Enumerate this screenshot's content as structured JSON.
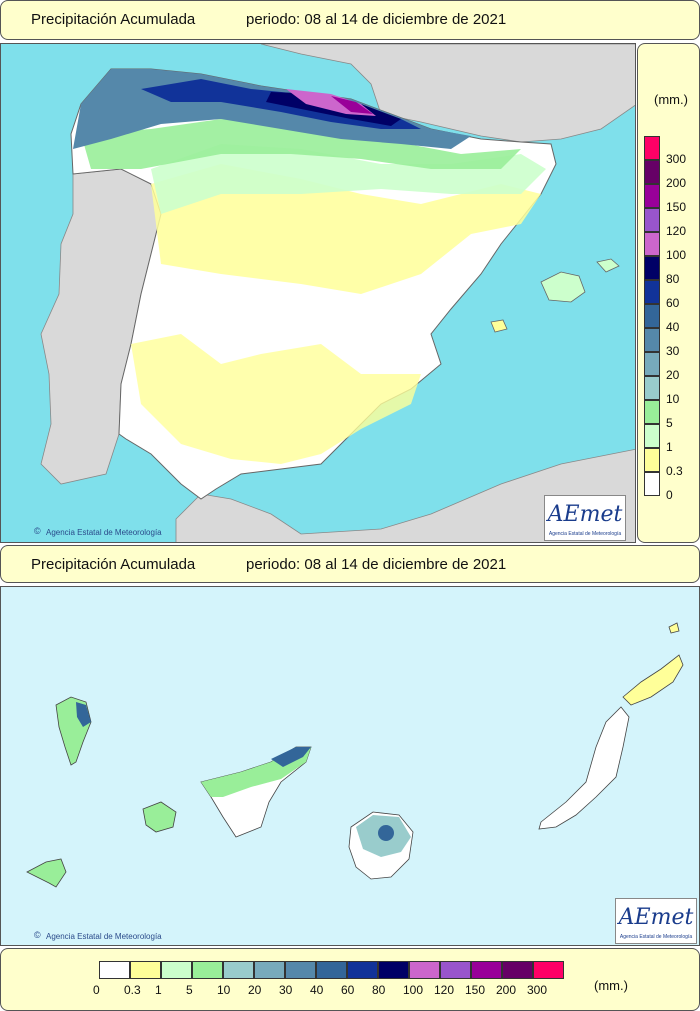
{
  "top_panel": {
    "title": "Precipitación Acumulada",
    "period": "periodo: 08 al 14 de diciembre de 2021",
    "credit": "Agencia Estatal de Meteorología",
    "logo_text": "AEmet",
    "logo_sub": "Agencia Estatal de Meteorología"
  },
  "bottom_panel": {
    "title": "Precipitación Acumulada",
    "period": "periodo: 08 al 14 de diciembre de 2021",
    "credit": "Agencia Estatal de Meteorología",
    "logo_text": "AEmet",
    "logo_sub": "Agencia Estatal de Meteorología"
  },
  "legend": {
    "units": "(mm.)",
    "labels": [
      "0",
      "0.3",
      "1",
      "5",
      "10",
      "20",
      "30",
      "40",
      "60",
      "80",
      "100",
      "120",
      "150",
      "200",
      "300"
    ],
    "colors": [
      "#ffffff",
      "#ffff99",
      "#ccffcc",
      "#99ee99",
      "#99cccc",
      "#77aabb",
      "#5588aa",
      "#336699",
      "#113399",
      "#000066",
      "#cc66cc",
      "#9955cc",
      "#990099",
      "#660066",
      "#ff0066"
    ]
  },
  "colors": {
    "sea": "#7fe0eb",
    "sea_canary": "#d4f4fb",
    "foreign_land": "#d9d9d9",
    "panel_bg": "#ffffcc"
  }
}
